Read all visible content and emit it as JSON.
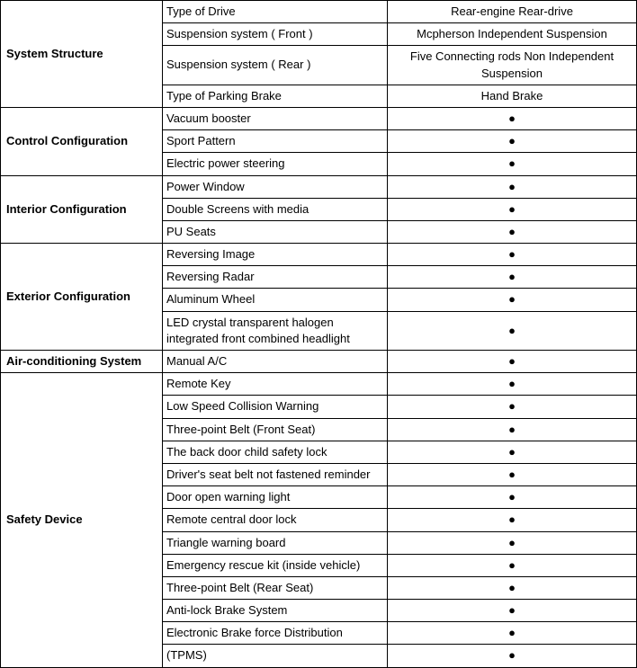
{
  "dot": "●",
  "sections": [
    {
      "category": "System Structure",
      "rows": [
        {
          "param": "Type of Drive",
          "value": "Rear-engine Rear-drive"
        },
        {
          "param": "Suspension system ( Front )",
          "value": "Mcpherson Independent Suspension"
        },
        {
          "param": "Suspension system ( Rear )",
          "value": "Five Connecting rods Non Independent Suspension"
        },
        {
          "param": "Type of Parking Brake",
          "value": "Hand Brake"
        }
      ]
    },
    {
      "category": "Control Configuration",
      "rows": [
        {
          "param": "Vacuum booster",
          "value": "●"
        },
        {
          "param": "Sport Pattern",
          "value": "●"
        },
        {
          "param": "Electric power steering",
          "value": "●"
        }
      ]
    },
    {
      "category": "Interior Configuration",
      "rows": [
        {
          "param": "Power Window",
          "value": "●"
        },
        {
          "param": "Double Screens with media",
          "value": "●"
        },
        {
          "param": "PU Seats",
          "value": "●"
        }
      ]
    },
    {
      "category": "Exterior Configuration",
      "rows": [
        {
          "param": "Reversing Image",
          "value": "●"
        },
        {
          "param": "Reversing Radar",
          "value": "●"
        },
        {
          "param": "Aluminum Wheel",
          "value": "●"
        },
        {
          "param": "LED crystal transparent halogen integrated front combined headlight",
          "value": "●"
        }
      ]
    },
    {
      "category": "Air-conditioning System",
      "rows": [
        {
          "param": "Manual A/C",
          "value": "●"
        }
      ]
    },
    {
      "category": "Safety Device",
      "rows": [
        {
          "param": "Remote Key",
          "value": "●"
        },
        {
          "param": "Low Speed Collision Warning",
          "value": "●"
        },
        {
          "param": "Three-point Belt (Front Seat)",
          "value": "●"
        },
        {
          "param": "The back door child safety lock",
          "value": "●"
        },
        {
          "param": "Driver's seat belt not fastened reminder",
          "value": "●"
        },
        {
          "param": "Door open warning light",
          "value": "●"
        },
        {
          "param": "Remote central door lock",
          "value": "●"
        },
        {
          "param": "Triangle warning board",
          "value": "●"
        },
        {
          "param": "Emergency rescue kit (inside vehicle)",
          "value": "●"
        },
        {
          "param": "Three-point Belt (Rear Seat)",
          "value": "●"
        },
        {
          "param": "Anti-lock Brake System",
          "value": "●"
        },
        {
          "param": "Electronic Brake force Distribution",
          "value": "●"
        },
        {
          "param": "(TPMS)",
          "value": "●"
        }
      ]
    }
  ],
  "col_widths": {
    "category": 180,
    "param": 250
  },
  "colors": {
    "border": "#000000",
    "text": "#000000",
    "bg": "#ffffff"
  },
  "font_size": 13
}
